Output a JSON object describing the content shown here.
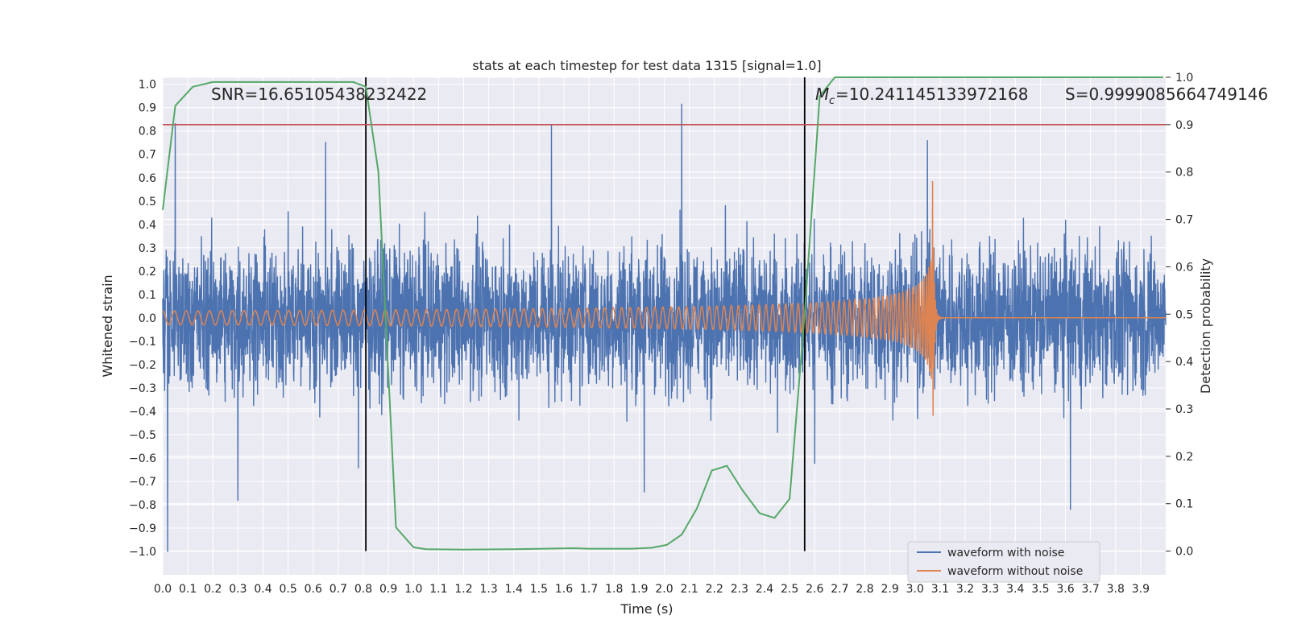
{
  "chart_data": {
    "type": "line",
    "title": "stats at each timestep for test data 1315 [signal=1.0]",
    "xlabel": "Time (s)",
    "ylabel_left": "Whitened strain",
    "ylabel_right": "Detection probability",
    "xlim": [
      0.0,
      4.0
    ],
    "ylim_left": [
      -1.1,
      1.03
    ],
    "ylim_right": [
      -0.05,
      1.0
    ],
    "x_ticks": [
      "0.0",
      "0.1",
      "0.2",
      "0.3",
      "0.4",
      "0.5",
      "0.6",
      "0.7",
      "0.8",
      "0.9",
      "1.0",
      "1.1",
      "1.2",
      "1.3",
      "1.4",
      "1.5",
      "1.6",
      "1.7",
      "1.8",
      "1.9",
      "2.0",
      "2.1",
      "2.2",
      "2.3",
      "2.4",
      "2.5",
      "2.6",
      "2.7",
      "2.8",
      "2.9",
      "3.0",
      "3.1",
      "3.2",
      "3.3",
      "3.4",
      "3.5",
      "3.6",
      "3.7",
      "3.8",
      "3.9"
    ],
    "y_ticks_left": [
      "1.0",
      "0.9",
      "0.8",
      "0.7",
      "0.6",
      "0.5",
      "0.4",
      "0.3",
      "0.2",
      "0.1",
      "0.0",
      "−0.1",
      "−0.2",
      "−0.3",
      "−0.4",
      "−0.5",
      "−0.6",
      "−0.7",
      "−0.8",
      "−0.9",
      "−1.0"
    ],
    "y_ticks_right": [
      "1.0",
      "0.9",
      "0.8",
      "0.7",
      "0.6",
      "0.5",
      "0.4",
      "0.3",
      "0.2",
      "0.1",
      "0.0"
    ],
    "grid": true,
    "legend_position": "lower-right",
    "series": [
      {
        "name": "waveform with noise",
        "color": "#4c72b0",
        "axis": "left",
        "kind": "noise",
        "amplitude": 0.38,
        "spikes": [
          [
            0.02,
            -1.0
          ],
          [
            0.05,
            0.82
          ],
          [
            0.3,
            -0.77
          ],
          [
            0.65,
            0.76
          ],
          [
            2.07,
            0.93
          ],
          [
            1.92,
            -0.74
          ],
          [
            3.05,
            0.83
          ],
          [
            3.62,
            -0.82
          ],
          [
            1.55,
            0.81
          ],
          [
            0.78,
            -0.63
          ],
          [
            2.6,
            -0.62
          ]
        ]
      },
      {
        "name": "waveform without noise",
        "color": "#dd8452",
        "axis": "left",
        "kind": "chirp",
        "start": 0.0,
        "merger": 3.07,
        "f0": 20,
        "amp0": 0.03
      },
      {
        "name": "",
        "color": "#55a868",
        "axis": "right",
        "x": [
          0.0,
          0.05,
          0.12,
          0.2,
          0.3,
          0.4,
          0.5,
          0.6,
          0.7,
          0.76,
          0.81,
          0.86,
          0.93,
          1.0,
          1.05,
          1.2,
          1.4,
          1.64,
          1.7,
          1.87,
          1.95,
          2.01,
          2.07,
          2.13,
          2.19,
          2.25,
          2.31,
          2.38,
          2.44,
          2.5,
          2.56,
          2.62,
          2.68,
          2.8,
          3.0,
          3.5,
          3.99
        ],
        "y": [
          0.72,
          0.94,
          0.98,
          0.99,
          0.99,
          0.99,
          0.99,
          0.99,
          0.99,
          0.99,
          0.98,
          0.8,
          0.05,
          0.008,
          0.004,
          0.003,
          0.004,
          0.006,
          0.005,
          0.005,
          0.007,
          0.013,
          0.035,
          0.09,
          0.17,
          0.18,
          0.13,
          0.08,
          0.07,
          0.11,
          0.5,
          0.96,
          1.0,
          1.0,
          1.0,
          1.0,
          1.0
        ]
      }
    ],
    "threshold_line": {
      "value": 0.9,
      "axis": "right",
      "color": "#c44e52"
    },
    "vertical_markers": [
      0.81,
      2.56
    ],
    "annotations": {
      "snr": "SNR=16.65105438232422",
      "mc": "=10.241145133972168",
      "mc_symbol": "M",
      "mc_sub": "c",
      "s": "S=0.9999085664749146"
    }
  }
}
